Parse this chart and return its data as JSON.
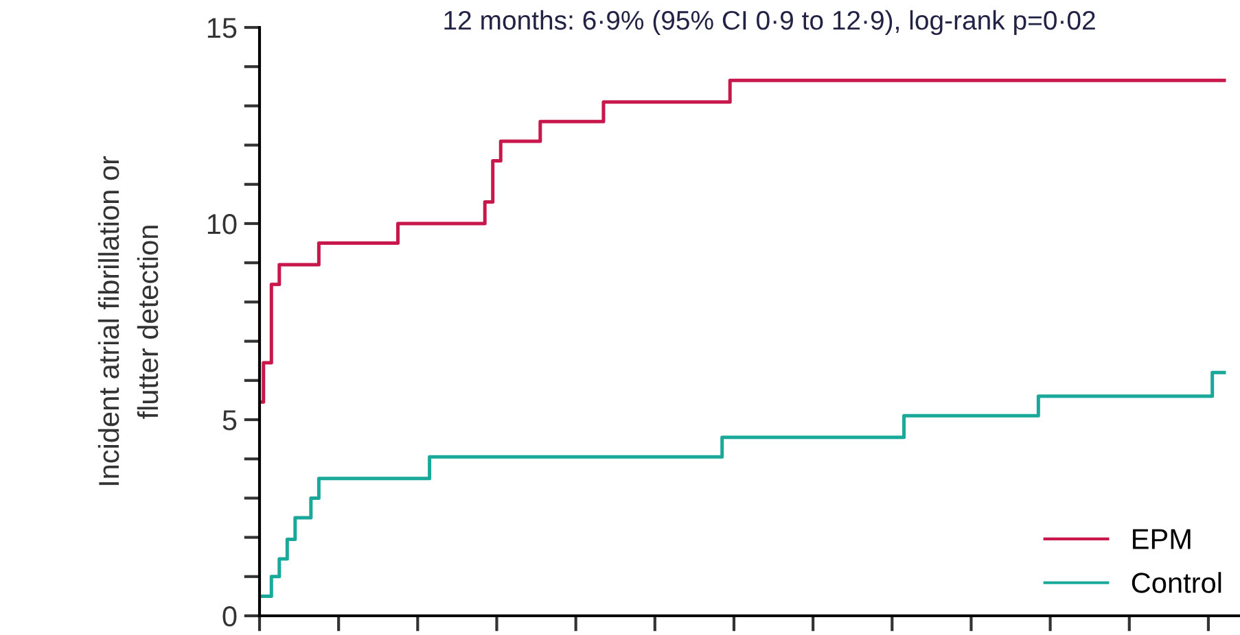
{
  "chart_data": {
    "type": "step",
    "title": "12 months: 6·9% (95% CI 0·9 to 12·9), log-rank p=0·02",
    "ylabel": "Incident atrial fibrillation or\nflutter detection",
    "categories": [
      null,
      null,
      null,
      null,
      null,
      null,
      null,
      null,
      null,
      null,
      null,
      null,
      null,
      null,
      null,
      null,
      null,
      null,
      null,
      null,
      null,
      null,
      null,
      null,
      null,
      null,
      null,
      null,
      null,
      null,
      null,
      null,
      null,
      null,
      null,
      null,
      null,
      null,
      null,
      null,
      null,
      null,
      null,
      null,
      null,
      null,
      null,
      null,
      null,
      null,
      null,
      null,
      null,
      null,
      null,
      null,
      null,
      null,
      null,
      null,
      null,
      null,
      null,
      null,
      null,
      null,
      null,
      null,
      null,
      null,
      null,
      null,
      null,
      null,
      null,
      null,
      null,
      null,
      null,
      null,
      null,
      null,
      null,
      null,
      null,
      null,
      null,
      null,
      null,
      null,
      null,
      null,
      null,
      null,
      null,
      null,
      null,
      null,
      null,
      null,
      null,
      null,
      null,
      null,
      null,
      null,
      null,
      null,
      null,
      null,
      null,
      null,
      null,
      null,
      null,
      null,
      null,
      null,
      null,
      null,
      null,
      null,
      null
    ],
    "series": [
      {
        "name": "EPM",
        "color": "#c8174a",
        "values": [
          5.45,
          6.45,
          8.45,
          8.95,
          8.95,
          8.95,
          8.95,
          8.95,
          9.5,
          9.5,
          9.5,
          9.5,
          9.5,
          9.5,
          9.5,
          9.5,
          9.5,
          9.5,
          10.0,
          10.0,
          10.0,
          10.0,
          10.0,
          10.0,
          10.0,
          10.0,
          10.0,
          10.0,
          10.0,
          10.55,
          11.6,
          12.1,
          12.1,
          12.1,
          12.1,
          12.1,
          12.6,
          12.6,
          12.6,
          12.6,
          12.6,
          12.6,
          12.6,
          12.6,
          13.1,
          13.1,
          13.1,
          13.1,
          13.1,
          13.1,
          13.1,
          13.1,
          13.1,
          13.1,
          13.1,
          13.1,
          13.1,
          13.1,
          13.1,
          13.1,
          13.65,
          13.65,
          13.65,
          13.65,
          13.65,
          13.65,
          13.65,
          13.65,
          13.65,
          13.65,
          13.65,
          13.65,
          13.65,
          13.65,
          13.65,
          13.65,
          13.65,
          13.65,
          13.65,
          13.65,
          13.65,
          13.65,
          13.65,
          13.65,
          13.65,
          13.65,
          13.65,
          13.65,
          13.65,
          13.65,
          13.65,
          13.65,
          13.65,
          13.65,
          13.65,
          13.65,
          13.65,
          13.65,
          13.65,
          13.65,
          13.65,
          13.65,
          13.65,
          13.65,
          13.65,
          13.65,
          13.65,
          13.65,
          13.65,
          13.65,
          13.65,
          13.65,
          13.65,
          13.65,
          13.65,
          13.65,
          13.65,
          13.65,
          13.65,
          13.65,
          13.65,
          13.65,
          13.65
        ]
      },
      {
        "name": "Control",
        "color": "#1aa89b",
        "values": [
          0.5,
          0.5,
          1.0,
          1.45,
          1.95,
          2.5,
          2.5,
          3.0,
          3.5,
          3.5,
          3.5,
          3.5,
          3.5,
          3.5,
          3.5,
          3.5,
          3.5,
          3.5,
          3.5,
          3.5,
          3.5,
          3.5,
          4.05,
          4.05,
          4.05,
          4.05,
          4.05,
          4.05,
          4.05,
          4.05,
          4.05,
          4.05,
          4.05,
          4.05,
          4.05,
          4.05,
          4.05,
          4.05,
          4.05,
          4.05,
          4.05,
          4.05,
          4.05,
          4.05,
          4.05,
          4.05,
          4.05,
          4.05,
          4.05,
          4.05,
          4.05,
          4.05,
          4.05,
          4.05,
          4.05,
          4.05,
          4.05,
          4.05,
          4.05,
          4.55,
          4.55,
          4.55,
          4.55,
          4.55,
          4.55,
          4.55,
          4.55,
          4.55,
          4.55,
          4.55,
          4.55,
          4.55,
          4.55,
          4.55,
          4.55,
          4.55,
          4.55,
          4.55,
          4.55,
          4.55,
          4.55,
          4.55,
          5.1,
          5.1,
          5.1,
          5.1,
          5.1,
          5.1,
          5.1,
          5.1,
          5.1,
          5.1,
          5.1,
          5.1,
          5.1,
          5.1,
          5.1,
          5.1,
          5.1,
          5.6,
          5.6,
          5.6,
          5.6,
          5.6,
          5.6,
          5.6,
          5.6,
          5.6,
          5.6,
          5.6,
          5.6,
          5.6,
          5.6,
          5.6,
          5.6,
          5.6,
          5.6,
          5.6,
          5.6,
          5.6,
          5.6,
          6.2,
          6.2
        ]
      }
    ],
    "ylim": [
      0,
      15
    ],
    "yticks": [
      0,
      {
        "value": 1,
        "label": null
      },
      {
        "value": 2,
        "label": null
      },
      {
        "value": 3,
        "label": null
      },
      {
        "value": 4,
        "label": null
      },
      5,
      {
        "value": 6,
        "label": null
      },
      {
        "value": 7,
        "label": null
      },
      {
        "value": 8,
        "label": null
      },
      {
        "value": 9,
        "label": null
      },
      10,
      {
        "value": 11,
        "label": null
      },
      {
        "value": 12,
        "label": null
      },
      {
        "value": 13,
        "label": null
      },
      {
        "value": 14,
        "label": null
      },
      15
    ],
    "legend": "bottom right",
    "line_style": "solid"
  }
}
